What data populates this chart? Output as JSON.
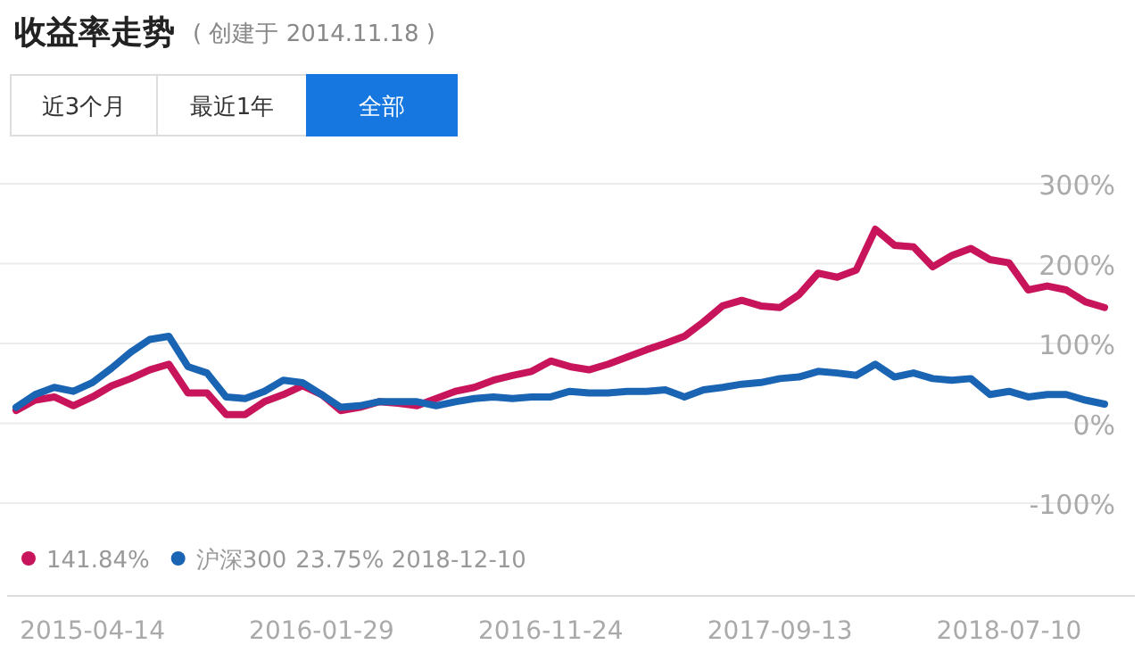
{
  "chart_data": {
    "type": "line",
    "title": "收益率走势",
    "subtitle": "( 创建于 2014.11.18 )",
    "annotations": [
      "近3个月",
      "最近1年",
      "全部",
      "141.84%",
      "23.75% 2018-12-10"
    ],
    "categories": [
      null,
      null,
      null,
      null,
      "2015-04-14",
      null,
      null,
      null,
      null,
      null,
      null,
      null,
      null,
      null,
      null,
      null,
      "2016-01-29",
      null,
      null,
      null,
      null,
      null,
      null,
      null,
      null,
      null,
      null,
      null,
      "2016-11-24",
      null,
      null,
      null,
      null,
      null,
      null,
      null,
      null,
      null,
      null,
      null,
      "2017-09-13",
      null,
      null,
      null,
      null,
      null,
      null,
      null,
      null,
      null,
      null,
      null,
      "2018-07-10",
      null,
      null,
      null,
      null,
      null
    ],
    "series": [
      {
        "color": "#c8145a",
        "values": [
          16,
          29,
          33,
          22,
          33,
          47,
          56,
          67,
          74,
          38,
          38,
          11,
          11,
          27,
          36,
          47,
          36,
          16,
          20,
          27,
          25,
          22,
          31,
          40,
          45,
          54,
          60,
          65,
          78,
          71,
          67,
          74,
          83,
          92,
          100,
          109,
          127,
          147,
          154,
          147,
          145,
          161,
          188,
          183,
          192,
          243,
          223,
          221,
          196,
          210,
          219,
          205,
          201,
          167,
          172,
          167,
          152,
          145
        ]
      },
      {
        "name": "沪深300",
        "color": "#1a64b4",
        "values": [
          20,
          36,
          45,
          40,
          51,
          69,
          89,
          105,
          109,
          71,
          63,
          33,
          31,
          40,
          54,
          51,
          36,
          20,
          22,
          27,
          27,
          27,
          22,
          27,
          31,
          33,
          31,
          33,
          33,
          40,
          38,
          38,
          40,
          40,
          42,
          33,
          42,
          45,
          49,
          51,
          56,
          58,
          65,
          63,
          60,
          74,
          58,
          63,
          56,
          54,
          56,
          36,
          40,
          33,
          36,
          36,
          29,
          24
        ]
      }
    ],
    "ylim": [
      -100,
      300
    ],
    "yticks": [
      {
        "value": -100,
        "label": "-100%"
      },
      {
        "value": 0,
        "label": "0%"
      },
      {
        "value": 100,
        "label": "100%"
      },
      {
        "value": 200,
        "label": "200%"
      },
      {
        "value": 300,
        "label": "300%"
      }
    ],
    "grid": "y",
    "legend": "bottom",
    "marker": "none",
    "line_style": "solid"
  }
}
